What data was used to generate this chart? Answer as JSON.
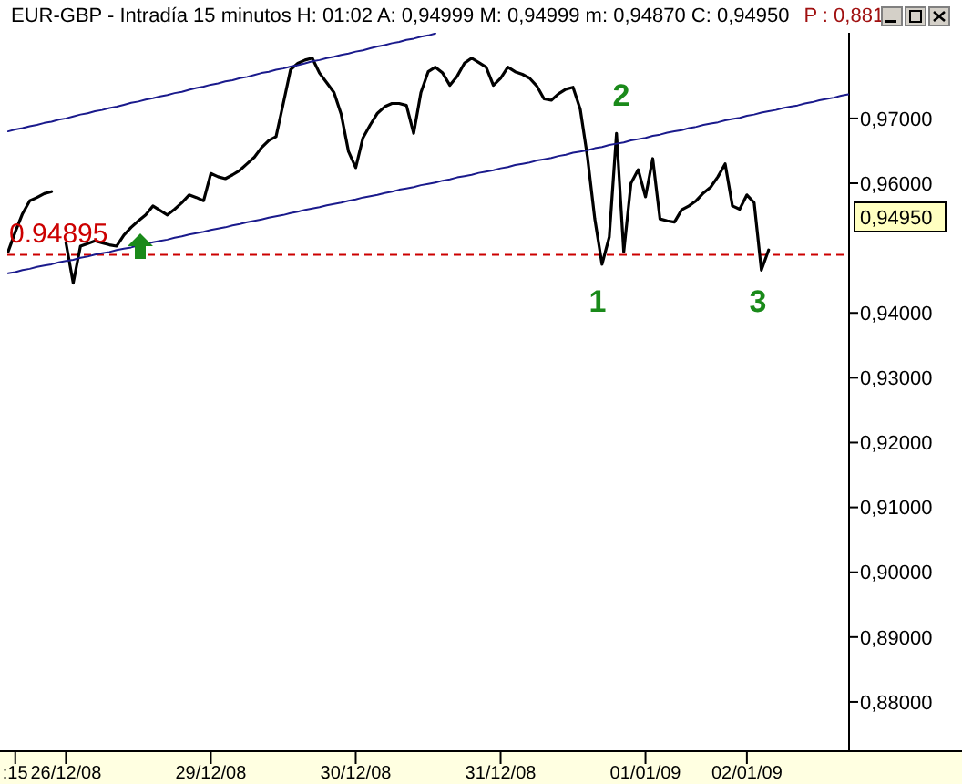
{
  "chart_data": {
    "type": "line",
    "title": "EUR-GBP - Intradía 15 minutos  H: 01:02  A: 0,94999  M: 0,94999  m: 0,94870  C: 0,94950",
    "subtitle": "P : 0,881",
    "categories": [
      null,
      ":15",
      null,
      null,
      null,
      null,
      null,
      null,
      "26/12/08",
      null,
      null,
      null,
      null,
      null,
      null,
      null,
      null,
      null,
      null,
      null,
      null,
      null,
      null,
      null,
      null,
      null,
      null,
      null,
      "29/12/08",
      null,
      null,
      null,
      null,
      null,
      null,
      null,
      null,
      null,
      null,
      null,
      null,
      null,
      null,
      null,
      null,
      null,
      null,
      null,
      "30/12/08",
      null,
      null,
      null,
      null,
      null,
      null,
      null,
      null,
      null,
      null,
      null,
      null,
      null,
      null,
      null,
      null,
      null,
      null,
      null,
      "31/12/08",
      null,
      null,
      null,
      null,
      null,
      null,
      null,
      null,
      null,
      null,
      null,
      null,
      null,
      null,
      null,
      null,
      null,
      null,
      null,
      "01/01/09",
      null,
      null,
      null,
      null,
      null,
      null,
      null,
      null,
      null,
      null,
      null,
      null,
      null,
      "02/01/09",
      null,
      null,
      null,
      null,
      null,
      null,
      null,
      null,
      null,
      null,
      null,
      null,
      null,
      null
    ],
    "ylim": [
      0.8724,
      0.9832
    ],
    "yticks": [
      {
        "value": 0.88,
        "label": "0,88000"
      },
      {
        "value": 0.89,
        "label": "0,89000"
      },
      {
        "value": 0.9,
        "label": "0,90000"
      },
      {
        "value": 0.91,
        "label": "0,91000"
      },
      {
        "value": 0.92,
        "label": "0,92000"
      },
      {
        "value": 0.93,
        "label": "0,93000"
      },
      {
        "value": 0.94,
        "label": "0,94000"
      },
      {
        "value": 0.96,
        "label": "0,96000"
      },
      {
        "value": 0.97,
        "label": "0,97000"
      }
    ],
    "series": [
      {
        "color": "#000000",
        "values": [
          0.9494,
          0.9525,
          0.9553,
          0.9573,
          0.9578,
          0.9584,
          0.9587,
          null,
          0.9508,
          0.9446,
          0.9503,
          0.9507,
          0.9511,
          0.9508,
          0.9505,
          0.9503,
          0.952,
          0.9532,
          0.9542,
          0.9551,
          0.9565,
          0.9558,
          0.9551,
          0.956,
          0.957,
          0.9582,
          0.9578,
          0.9573,
          0.9615,
          0.961,
          0.9607,
          0.9613,
          0.962,
          0.963,
          0.964,
          0.9655,
          0.9666,
          0.9672,
          0.9723,
          0.9775,
          0.9785,
          0.979,
          0.9793,
          0.977,
          0.9755,
          0.974,
          0.9706,
          0.9649,
          0.9624,
          0.967,
          0.969,
          0.9708,
          0.9718,
          0.9723,
          0.9723,
          0.972,
          0.9677,
          0.974,
          0.9772,
          0.9779,
          0.977,
          0.9751,
          0.9765,
          0.9785,
          0.9793,
          0.9786,
          0.9779,
          0.9751,
          0.9762,
          0.9779,
          0.9772,
          0.9768,
          0.9762,
          0.975,
          0.973,
          0.9728,
          0.9738,
          0.9745,
          0.9748,
          0.9714,
          0.964,
          0.9545,
          0.9475,
          0.9517,
          0.9677,
          0.9494,
          0.96,
          0.9621,
          0.9579,
          0.9638,
          0.9545,
          0.9542,
          0.954,
          0.9559,
          0.9565,
          0.9573,
          0.9585,
          0.9594,
          0.961,
          0.963,
          0.9565,
          0.956,
          0.9582,
          0.957,
          0.9466,
          0.9497,
          null,
          null,
          null,
          null,
          null,
          null,
          null,
          null,
          null,
          null,
          null
        ]
      },
      {
        "color": "#1a1a8c",
        "values": [
          0.968,
          0.9683,
          0.9685,
          0.9688,
          0.969,
          0.9693,
          0.9695,
          0.9698,
          0.97,
          0.9703,
          0.9706,
          0.9708,
          0.9711,
          0.9713,
          0.9716,
          0.9718,
          0.9721,
          0.9724,
          0.9726,
          0.9729,
          0.9731,
          0.9734,
          0.9736,
          0.9739,
          0.9741,
          0.9744,
          0.9747,
          0.9749,
          0.9752,
          0.9754,
          0.9757,
          0.9759,
          0.9762,
          0.9764,
          0.9767,
          0.977,
          0.9772,
          0.9775,
          0.9777,
          0.978,
          0.9782,
          0.9785,
          0.9788,
          0.979,
          0.9793,
          0.9795,
          0.9798,
          0.98,
          0.9803,
          0.9805,
          0.9808,
          0.9811,
          0.9813,
          0.9816,
          0.9818,
          0.9821,
          0.9823,
          0.9826,
          0.9828,
          0.9831,
          null,
          null,
          null,
          null,
          null,
          null,
          null,
          null,
          null,
          null,
          null,
          null,
          null,
          null,
          null,
          null,
          null,
          null,
          null,
          null,
          null,
          null,
          null,
          null,
          null,
          null,
          null,
          null,
          null,
          null,
          null,
          null,
          null,
          null,
          null,
          null,
          null,
          null,
          null,
          null,
          null,
          null,
          null,
          null,
          null,
          null,
          null,
          null,
          null,
          null,
          null,
          null,
          null,
          null,
          null,
          null,
          null
        ]
      },
      {
        "color": "#1a1a8c",
        "values": [
          0.9461,
          0.9463,
          0.9466,
          0.9468,
          0.9471,
          0.9473,
          0.9475,
          0.9478,
          0.948,
          0.9482,
          0.9485,
          0.9487,
          0.949,
          0.9492,
          0.9494,
          0.9497,
          0.9499,
          0.9501,
          0.9504,
          0.9506,
          0.9509,
          0.9511,
          0.9513,
          0.9516,
          0.9518,
          0.9521,
          0.9523,
          0.9525,
          0.9528,
          0.953,
          0.9532,
          0.9535,
          0.9537,
          0.954,
          0.9542,
          0.9544,
          0.9547,
          0.9549,
          0.9551,
          0.9554,
          0.9556,
          0.9559,
          0.9561,
          0.9563,
          0.9566,
          0.9568,
          0.957,
          0.9573,
          0.9575,
          0.9578,
          0.958,
          0.9582,
          0.9585,
          0.9587,
          0.959,
          0.9592,
          0.9594,
          0.9597,
          0.9599,
          0.9601,
          0.9604,
          0.9606,
          0.9609,
          0.9611,
          0.9613,
          0.9616,
          0.9618,
          0.962,
          0.9623,
          0.9625,
          0.9628,
          0.963,
          0.9632,
          0.9635,
          0.9637,
          0.9639,
          0.9642,
          0.9644,
          0.9647,
          0.9649,
          0.9651,
          0.9654,
          0.9656,
          0.9659,
          0.9661,
          0.9663,
          0.9666,
          0.9668,
          0.967,
          0.9673,
          0.9675,
          0.9678,
          0.968,
          0.9682,
          0.9685,
          0.9687,
          0.969,
          0.9692,
          0.9694,
          0.9697,
          0.9699,
          0.9701,
          0.9704,
          0.9706,
          0.9709,
          0.9711,
          0.9713,
          0.9716,
          0.9718,
          0.972,
          0.9723,
          0.9725,
          0.9728,
          0.973,
          0.9732,
          0.9735,
          0.9737
        ]
      }
    ],
    "ref_lines": [
      {
        "axis": "y",
        "value": 0.94895,
        "label": "0.94895",
        "color": "#cc0000",
        "line_style": "dashed"
      }
    ],
    "annotations": [
      "1",
      "2",
      "3",
      "0,94950"
    ]
  }
}
